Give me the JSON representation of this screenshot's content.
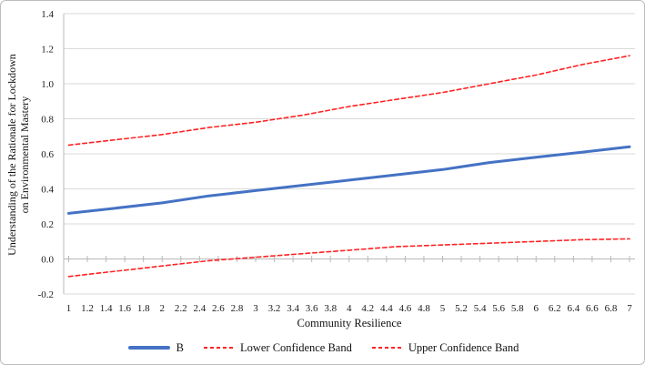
{
  "figure": {
    "border_color": "#bdbdbd",
    "background": "#ffffff"
  },
  "chart_data": {
    "type": "line",
    "title": "",
    "x_label": "Community Resilience",
    "y_label_line1": "Understanding of the Rationale for Lockdown",
    "y_label_line2": "on Environmental Mastery",
    "x_range": [
      1,
      7
    ],
    "y_range": [
      -0.2,
      1.4
    ],
    "grid": true,
    "legend_position": "bottom",
    "x_ticks": [
      "1",
      "1.2",
      "1.4",
      "1.6",
      "1.8",
      "2",
      "2.2",
      "2.4",
      "2.6",
      "2.8",
      "3",
      "3.2",
      "3.4",
      "3.6",
      "3.8",
      "4",
      "4.2",
      "4.4",
      "4.6",
      "4.8",
      "5",
      "5.2",
      "5.4",
      "5.6",
      "5.8",
      "6",
      "6.2",
      "6.4",
      "6.6",
      "6.8",
      "7"
    ],
    "y_ticks": [
      "1.4",
      "1.2",
      "1.0",
      "0.8",
      "0.6",
      "0.4",
      "0.2",
      "0.0",
      "-0.2"
    ],
    "colors": {
      "line_blue": "#4472C4",
      "band_red": "#FF2222",
      "gridline": "#dadada",
      "axis": "#b8b8b8",
      "text": "#1a1a1a"
    },
    "series": [
      {
        "name": "B",
        "color": "#4472C4",
        "style": "solid",
        "width": 3,
        "x": [
          1,
          1.5,
          2,
          2.5,
          3,
          3.5,
          4,
          4.5,
          5,
          5.5,
          6,
          6.5,
          7
        ],
        "values": [
          0.26,
          0.29,
          0.32,
          0.36,
          0.39,
          0.42,
          0.45,
          0.48,
          0.51,
          0.55,
          0.58,
          0.61,
          0.64
        ]
      },
      {
        "name": "Lower Confidence Band",
        "color": "#FF2222",
        "style": "dashed",
        "width": 1.6,
        "x": [
          1,
          1.5,
          2,
          2.5,
          3,
          3.5,
          4,
          4.5,
          5,
          5.5,
          6,
          6.5,
          7
        ],
        "values": [
          -0.1,
          -0.07,
          -0.04,
          -0.01,
          0.01,
          0.03,
          0.05,
          0.07,
          0.08,
          0.09,
          0.1,
          0.11,
          0.115
        ]
      },
      {
        "name": "Upper Confidence Band",
        "color": "#FF2222",
        "style": "dashed",
        "width": 1.6,
        "x": [
          1,
          1.5,
          2,
          2.5,
          3,
          3.5,
          4,
          4.5,
          5,
          5.5,
          6,
          6.5,
          7
        ],
        "values": [
          0.65,
          0.68,
          0.71,
          0.75,
          0.78,
          0.82,
          0.87,
          0.91,
          0.95,
          1.0,
          1.05,
          1.11,
          1.16
        ]
      }
    ]
  }
}
